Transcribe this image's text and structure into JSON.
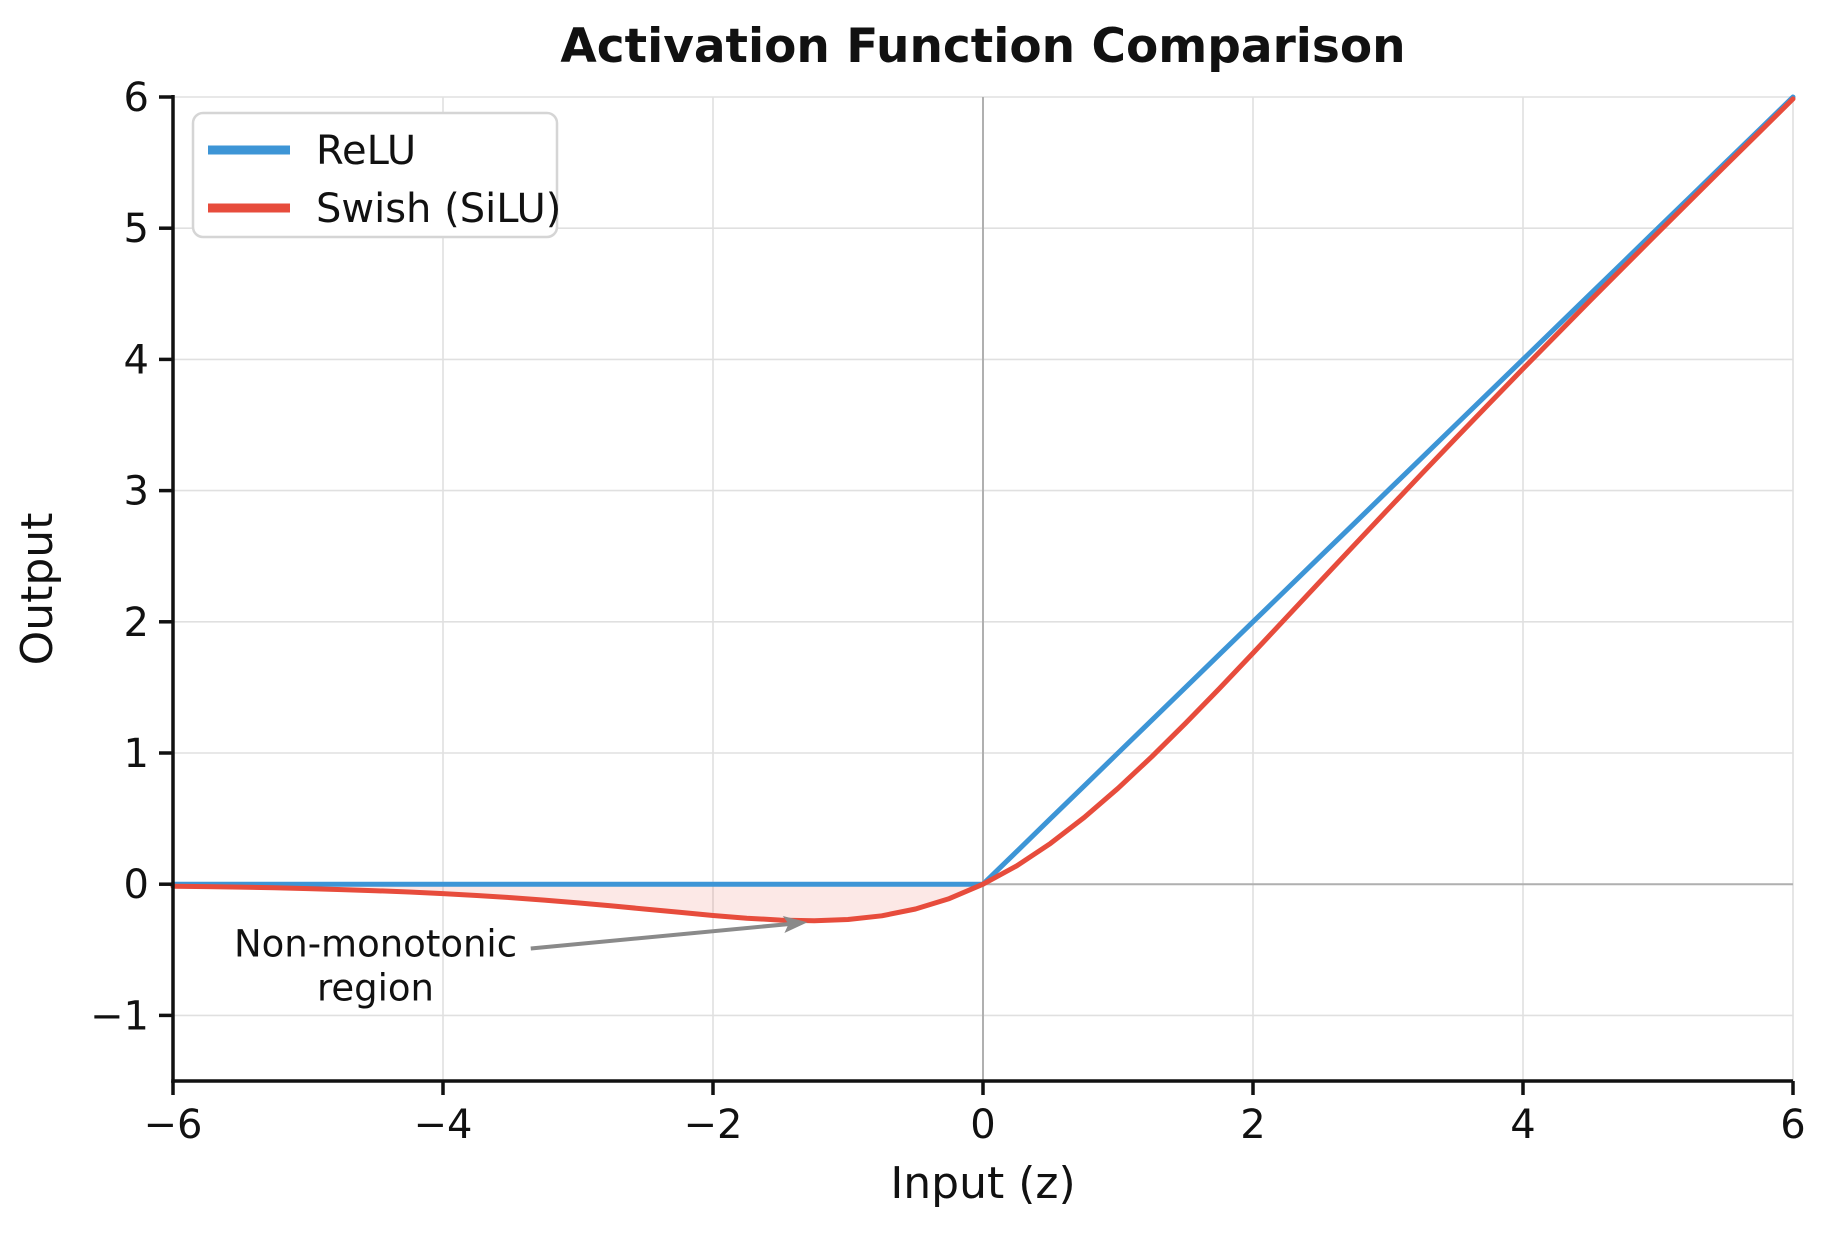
{
  "chart_data": {
    "type": "line",
    "title": "Activation Function Comparison",
    "xlabel": "Input (z)",
    "ylabel": "Output",
    "xlim": [
      -6,
      6
    ],
    "ylim": [
      -1.5,
      6
    ],
    "grid": true,
    "grid_color": "#e0e0e0",
    "zero_line_color": "#b0b0b0",
    "spine_color": "#111111",
    "x_ticks": [
      -6,
      -4,
      -2,
      0,
      2,
      4,
      6
    ],
    "x_tick_labels": [
      "−6",
      "−4",
      "−2",
      "0",
      "2",
      "4",
      "6"
    ],
    "y_ticks": [
      -1,
      0,
      1,
      2,
      3,
      4,
      5,
      6
    ],
    "y_tick_labels": [
      "−1",
      "0",
      "1",
      "2",
      "3",
      "4",
      "5",
      "6"
    ],
    "legend_position": "upper left",
    "x": [
      -6,
      -5.75,
      -5.5,
      -5.25,
      -5,
      -4.75,
      -4.5,
      -4.25,
      -4,
      -3.75,
      -3.5,
      -3.25,
      -3,
      -2.75,
      -2.5,
      -2.25,
      -2,
      -1.75,
      -1.5,
      -1.25,
      -1,
      -0.75,
      -0.5,
      -0.25,
      0,
      0.25,
      0.5,
      0.75,
      1,
      1.25,
      1.5,
      1.75,
      2,
      2.25,
      2.5,
      2.75,
      3,
      3.25,
      3.5,
      3.75,
      4,
      4.25,
      4.5,
      4.75,
      5,
      5.25,
      5.5,
      5.75,
      6
    ],
    "series": [
      {
        "name": "ReLU",
        "color": "#3d95d6",
        "values": [
          0,
          0,
          0,
          0,
          0,
          0,
          0,
          0,
          0,
          0,
          0,
          0,
          0,
          0,
          0,
          0,
          0,
          0,
          0,
          0,
          0,
          0,
          0,
          0,
          0,
          0.25,
          0.5,
          0.75,
          1,
          1.25,
          1.5,
          1.75,
          2,
          2.25,
          2.5,
          2.75,
          3,
          3.25,
          3.5,
          3.75,
          4,
          4.25,
          4.5,
          4.75,
          5,
          5.25,
          5.5,
          5.75,
          6
        ]
      },
      {
        "name": "Swish (SiLU)",
        "color": "#e74c3c",
        "values": [
          -0.0149,
          -0.0183,
          -0.0224,
          -0.0274,
          -0.0335,
          -0.0408,
          -0.0495,
          -0.0598,
          -0.0719,
          -0.086,
          -0.1024,
          -0.1211,
          -0.1423,
          -0.1654,
          -0.1897,
          -0.2145,
          -0.2384,
          -0.259,
          -0.2736,
          -0.2784,
          -0.2689,
          -0.2406,
          -0.1888,
          -0.1095,
          0,
          0.1405,
          0.3112,
          0.5094,
          0.7311,
          0.9716,
          1.2263,
          1.4909,
          1.7616,
          2.0355,
          2.3103,
          2.5846,
          2.8577,
          3.1287,
          3.3973,
          3.6637,
          3.9281,
          4.19,
          4.4504,
          4.709,
          4.9665,
          5.2227,
          5.4776,
          5.7317,
          5.9852
        ]
      }
    ],
    "fill_region": {
      "series": "Swish (SiLU)",
      "between_y": 0,
      "x_range": [
        -6,
        0
      ],
      "color": "#e74c3c",
      "opacity": 0.13
    },
    "annotation": {
      "line1": "Non-monotonic",
      "line2": "region",
      "color": "#7f8c8d",
      "arrow_color": "#8a8a8a",
      "text_xy": [
        -4.5,
        -0.55
      ],
      "arrow_tail_xy": [
        -3.35,
        -0.49
      ],
      "arrow_tip_xy": [
        -1.3,
        -0.29
      ]
    }
  },
  "legend": {
    "items": [
      {
        "label": "ReLU"
      },
      {
        "label": "Swish (SiLU)"
      }
    ]
  }
}
